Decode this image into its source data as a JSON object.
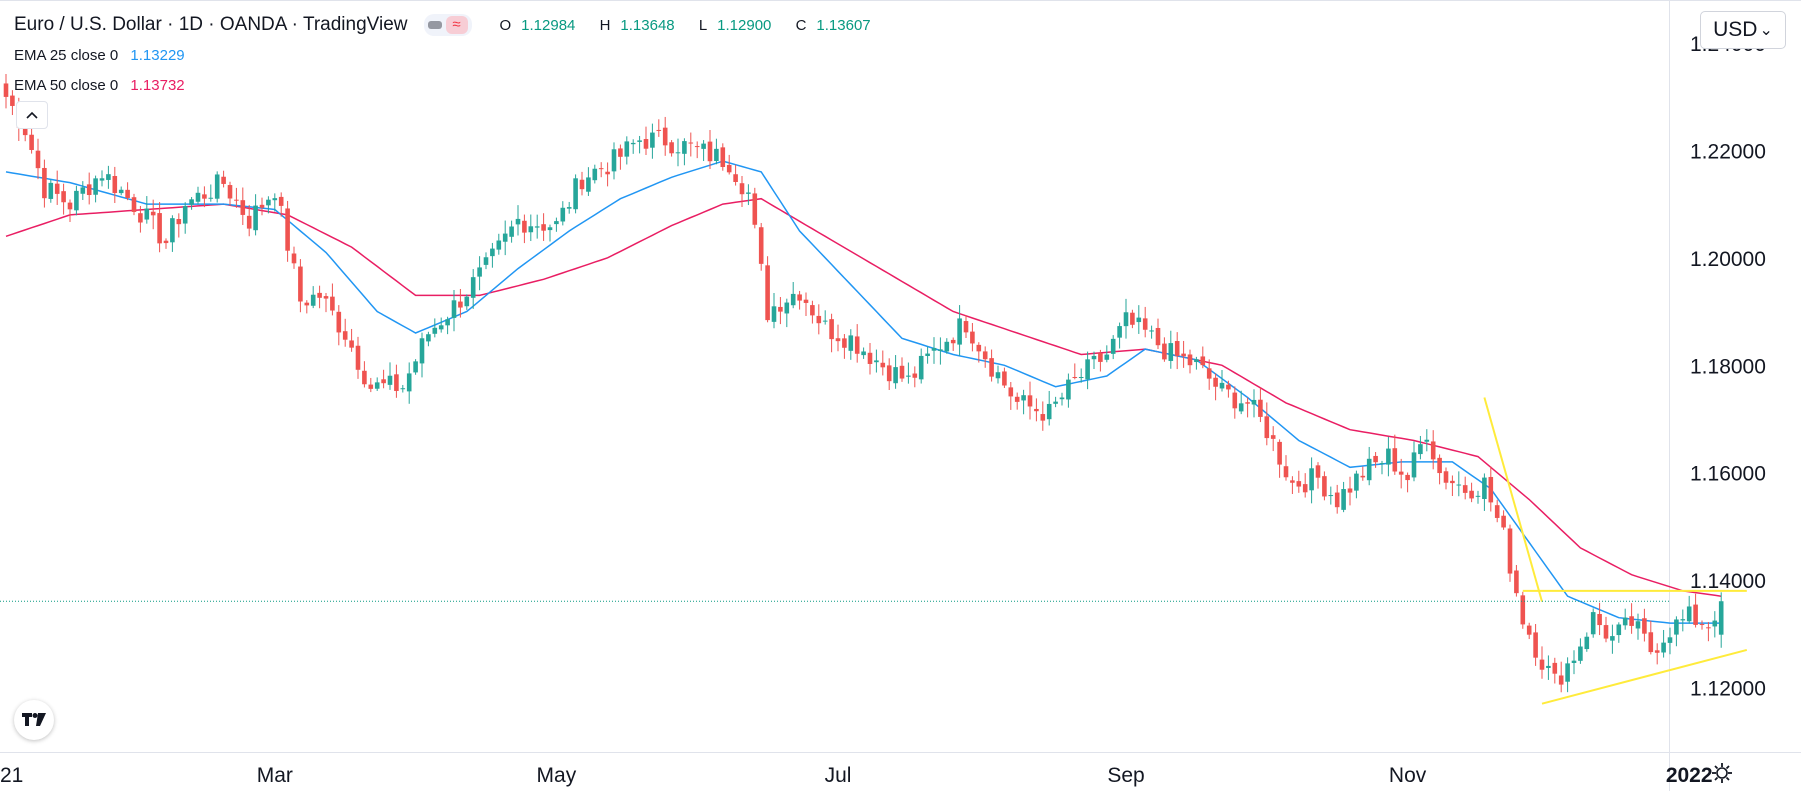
{
  "header": {
    "title": "Euro / U.S. Dollar · 1D · OANDA · TradingView",
    "ohlc": {
      "o_label": "O",
      "o": "1.12984",
      "h_label": "H",
      "h": "1.13648",
      "l_label": "L",
      "l": "1.12900",
      "c_label": "C",
      "c": "1.13607"
    },
    "ema25": {
      "label": "EMA 25 close 0",
      "value": "1.13229"
    },
    "ema50": {
      "label": "EMA 50 close 0",
      "value": "1.13732"
    }
  },
  "controls": {
    "currency": "USD",
    "currency_caret": "⌄"
  },
  "icons": {
    "collapse": "chevron-up-icon",
    "logo": "tradingview-logo-icon",
    "settings": "gear-icon"
  },
  "colors": {
    "up": "#26a69a",
    "down": "#ef5350",
    "ema25": "#2196f3",
    "ema50": "#e91e63",
    "trendline": "#ffeb3b",
    "price_line": "#089981"
  },
  "chart_data": {
    "type": "candlestick",
    "symbol": "EURUSD",
    "interval": "1D",
    "y_range": [
      1.108,
      1.248
    ],
    "y_ticks": [
      {
        "value": 1.24,
        "label": "1.24000"
      },
      {
        "value": 1.22,
        "label": "1.22000"
      },
      {
        "value": 1.2,
        "label": "1.20000"
      },
      {
        "value": 1.18,
        "label": "1.18000"
      },
      {
        "value": 1.16,
        "label": "1.16000"
      },
      {
        "value": 1.14,
        "label": "1.14000"
      },
      {
        "value": 1.12,
        "label": "1.12000"
      }
    ],
    "x_ticks": [
      {
        "index": 0,
        "label": "21"
      },
      {
        "index": 42,
        "label": "Mar"
      },
      {
        "index": 86,
        "label": "May"
      },
      {
        "index": 130,
        "label": "Jul"
      },
      {
        "index": 175,
        "label": "Sep"
      },
      {
        "index": 219,
        "label": "Nov"
      },
      {
        "index": 263,
        "label": "2022"
      }
    ],
    "last_close": 1.13607,
    "anchors": [
      {
        "i": 0,
        "c": 1.23
      },
      {
        "i": 3,
        "c": 1.224
      },
      {
        "i": 6,
        "c": 1.213
      },
      {
        "i": 10,
        "c": 1.21
      },
      {
        "i": 15,
        "c": 1.216
      },
      {
        "i": 20,
        "c": 1.21
      },
      {
        "i": 25,
        "c": 1.203
      },
      {
        "i": 28,
        "c": 1.21
      },
      {
        "i": 34,
        "c": 1.214
      },
      {
        "i": 38,
        "c": 1.207
      },
      {
        "i": 42,
        "c": 1.213
      },
      {
        "i": 46,
        "c": 1.192
      },
      {
        "i": 49,
        "c": 1.193
      },
      {
        "i": 53,
        "c": 1.186
      },
      {
        "i": 57,
        "c": 1.176
      },
      {
        "i": 62,
        "c": 1.176
      },
      {
        "i": 66,
        "c": 1.186
      },
      {
        "i": 70,
        "c": 1.191
      },
      {
        "i": 75,
        "c": 1.198
      },
      {
        "i": 80,
        "c": 1.207
      },
      {
        "i": 86,
        "c": 1.206
      },
      {
        "i": 90,
        "c": 1.215
      },
      {
        "i": 95,
        "c": 1.218
      },
      {
        "i": 99,
        "c": 1.222
      },
      {
        "i": 103,
        "c": 1.222
      },
      {
        "i": 108,
        "c": 1.22
      },
      {
        "i": 113,
        "c": 1.218
      },
      {
        "i": 116,
        "c": 1.212
      },
      {
        "i": 119,
        "c": 1.19
      },
      {
        "i": 121,
        "c": 1.192
      },
      {
        "i": 124,
        "c": 1.194
      },
      {
        "i": 128,
        "c": 1.187
      },
      {
        "i": 132,
        "c": 1.185
      },
      {
        "i": 137,
        "c": 1.18
      },
      {
        "i": 141,
        "c": 1.177
      },
      {
        "i": 146,
        "c": 1.184
      },
      {
        "i": 150,
        "c": 1.188
      },
      {
        "i": 154,
        "c": 1.18
      },
      {
        "i": 158,
        "c": 1.173
      },
      {
        "i": 163,
        "c": 1.171
      },
      {
        "i": 167,
        "c": 1.177
      },
      {
        "i": 172,
        "c": 1.182
      },
      {
        "i": 175,
        "c": 1.188
      },
      {
        "i": 178,
        "c": 1.186
      },
      {
        "i": 182,
        "c": 1.182
      },
      {
        "i": 186,
        "c": 1.18
      },
      {
        "i": 190,
        "c": 1.175
      },
      {
        "i": 194,
        "c": 1.173
      },
      {
        "i": 197,
        "c": 1.168
      },
      {
        "i": 201,
        "c": 1.158
      },
      {
        "i": 205,
        "c": 1.159
      },
      {
        "i": 208,
        "c": 1.155
      },
      {
        "i": 212,
        "c": 1.16
      },
      {
        "i": 216,
        "c": 1.163
      },
      {
        "i": 219,
        "c": 1.159
      },
      {
        "i": 222,
        "c": 1.168
      },
      {
        "i": 224,
        "c": 1.16
      },
      {
        "i": 228,
        "c": 1.157
      },
      {
        "i": 231,
        "c": 1.158
      },
      {
        "i": 234,
        "c": 1.148
      },
      {
        "i": 237,
        "c": 1.133
      },
      {
        "i": 240,
        "c": 1.125
      },
      {
        "i": 242,
        "c": 1.121
      },
      {
        "i": 245,
        "c": 1.126
      },
      {
        "i": 248,
        "c": 1.133
      },
      {
        "i": 251,
        "c": 1.129
      },
      {
        "i": 254,
        "c": 1.132
      },
      {
        "i": 257,
        "c": 1.127
      },
      {
        "i": 260,
        "c": 1.131
      },
      {
        "i": 263,
        "c": 1.133
      },
      {
        "i": 266,
        "c": 1.132
      },
      {
        "i": 268,
        "c": 1.136
      }
    ],
    "ema25_series": [
      {
        "i": 0,
        "v": 1.216
      },
      {
        "i": 10,
        "v": 1.214
      },
      {
        "i": 22,
        "v": 1.21
      },
      {
        "i": 34,
        "v": 1.21
      },
      {
        "i": 42,
        "v": 1.209
      },
      {
        "i": 50,
        "v": 1.201
      },
      {
        "i": 58,
        "v": 1.19
      },
      {
        "i": 64,
        "v": 1.186
      },
      {
        "i": 72,
        "v": 1.19
      },
      {
        "i": 80,
        "v": 1.198
      },
      {
        "i": 88,
        "v": 1.205
      },
      {
        "i": 96,
        "v": 1.211
      },
      {
        "i": 104,
        "v": 1.215
      },
      {
        "i": 112,
        "v": 1.218
      },
      {
        "i": 118,
        "v": 1.216
      },
      {
        "i": 124,
        "v": 1.205
      },
      {
        "i": 132,
        "v": 1.195
      },
      {
        "i": 140,
        "v": 1.185
      },
      {
        "i": 148,
        "v": 1.182
      },
      {
        "i": 156,
        "v": 1.18
      },
      {
        "i": 164,
        "v": 1.176
      },
      {
        "i": 172,
        "v": 1.178
      },
      {
        "i": 178,
        "v": 1.183
      },
      {
        "i": 186,
        "v": 1.181
      },
      {
        "i": 194,
        "v": 1.174
      },
      {
        "i": 202,
        "v": 1.166
      },
      {
        "i": 210,
        "v": 1.161
      },
      {
        "i": 218,
        "v": 1.162
      },
      {
        "i": 226,
        "v": 1.162
      },
      {
        "i": 232,
        "v": 1.157
      },
      {
        "i": 238,
        "v": 1.147
      },
      {
        "i": 244,
        "v": 1.137
      },
      {
        "i": 252,
        "v": 1.133
      },
      {
        "i": 260,
        "v": 1.132
      },
      {
        "i": 268,
        "v": 1.132
      }
    ],
    "ema50_series": [
      {
        "i": 0,
        "v": 1.204
      },
      {
        "i": 10,
        "v": 1.208
      },
      {
        "i": 22,
        "v": 1.209
      },
      {
        "i": 34,
        "v": 1.21
      },
      {
        "i": 44,
        "v": 1.208
      },
      {
        "i": 54,
        "v": 1.202
      },
      {
        "i": 64,
        "v": 1.193
      },
      {
        "i": 74,
        "v": 1.193
      },
      {
        "i": 84,
        "v": 1.196
      },
      {
        "i": 94,
        "v": 1.2
      },
      {
        "i": 104,
        "v": 1.206
      },
      {
        "i": 112,
        "v": 1.21
      },
      {
        "i": 118,
        "v": 1.211
      },
      {
        "i": 128,
        "v": 1.204
      },
      {
        "i": 138,
        "v": 1.197
      },
      {
        "i": 148,
        "v": 1.19
      },
      {
        "i": 158,
        "v": 1.186
      },
      {
        "i": 168,
        "v": 1.182
      },
      {
        "i": 178,
        "v": 1.183
      },
      {
        "i": 190,
        "v": 1.18
      },
      {
        "i": 200,
        "v": 1.173
      },
      {
        "i": 210,
        "v": 1.168
      },
      {
        "i": 220,
        "v": 1.166
      },
      {
        "i": 230,
        "v": 1.163
      },
      {
        "i": 238,
        "v": 1.155
      },
      {
        "i": 246,
        "v": 1.146
      },
      {
        "i": 254,
        "v": 1.141
      },
      {
        "i": 262,
        "v": 1.138
      },
      {
        "i": 268,
        "v": 1.137
      }
    ],
    "trendlines": [
      {
        "name": "steep-downtrend",
        "from": {
          "i": 231,
          "v": 1.174
        },
        "to": {
          "i": 240,
          "v": 1.136
        }
      },
      {
        "name": "range-top",
        "from": {
          "i": 237,
          "v": 1.138
        },
        "to": {
          "i": 272,
          "v": 1.138
        }
      },
      {
        "name": "rising-support",
        "from": {
          "i": 240,
          "v": 1.117
        },
        "to": {
          "i": 272,
          "v": 1.127
        }
      }
    ]
  }
}
